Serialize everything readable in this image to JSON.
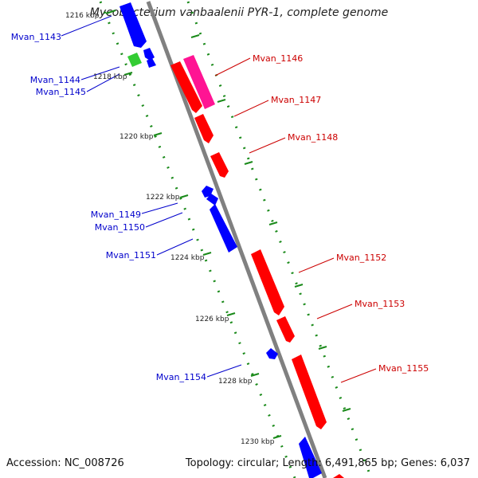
{
  "title": "Mycobacterium vanbaalenii PYR-1, complete genome",
  "accession": "Accession: NC_008726",
  "topology": "Topology: circular; Length: 6,491,865 bp; Genes: 6,037",
  "colors": {
    "minus_strand": "#0000ff",
    "plus_strand": "#ff0000",
    "rna_plus": "#ff1493",
    "rna_minus": "#33cc33",
    "backbone": "#808080",
    "dots": "#1a8a1a"
  },
  "ticks": [
    "1216 kbp",
    "1218 kbp",
    "1220 kbp",
    "1222 kbp",
    "1224 kbp",
    "1226 kbp",
    "1228 kbp",
    "1230 kbp"
  ],
  "genes_left": [
    "Mvan_1143",
    "Mvan_1144",
    "Mvan_1145",
    "Mvan_1149",
    "Mvan_1150",
    "Mvan_1151",
    "Mvan_1154"
  ],
  "genes_right": [
    "Mvan_1146",
    "Mvan_1147",
    "Mvan_1148",
    "Mvan_1152",
    "Mvan_1153",
    "Mvan_1155"
  ]
}
